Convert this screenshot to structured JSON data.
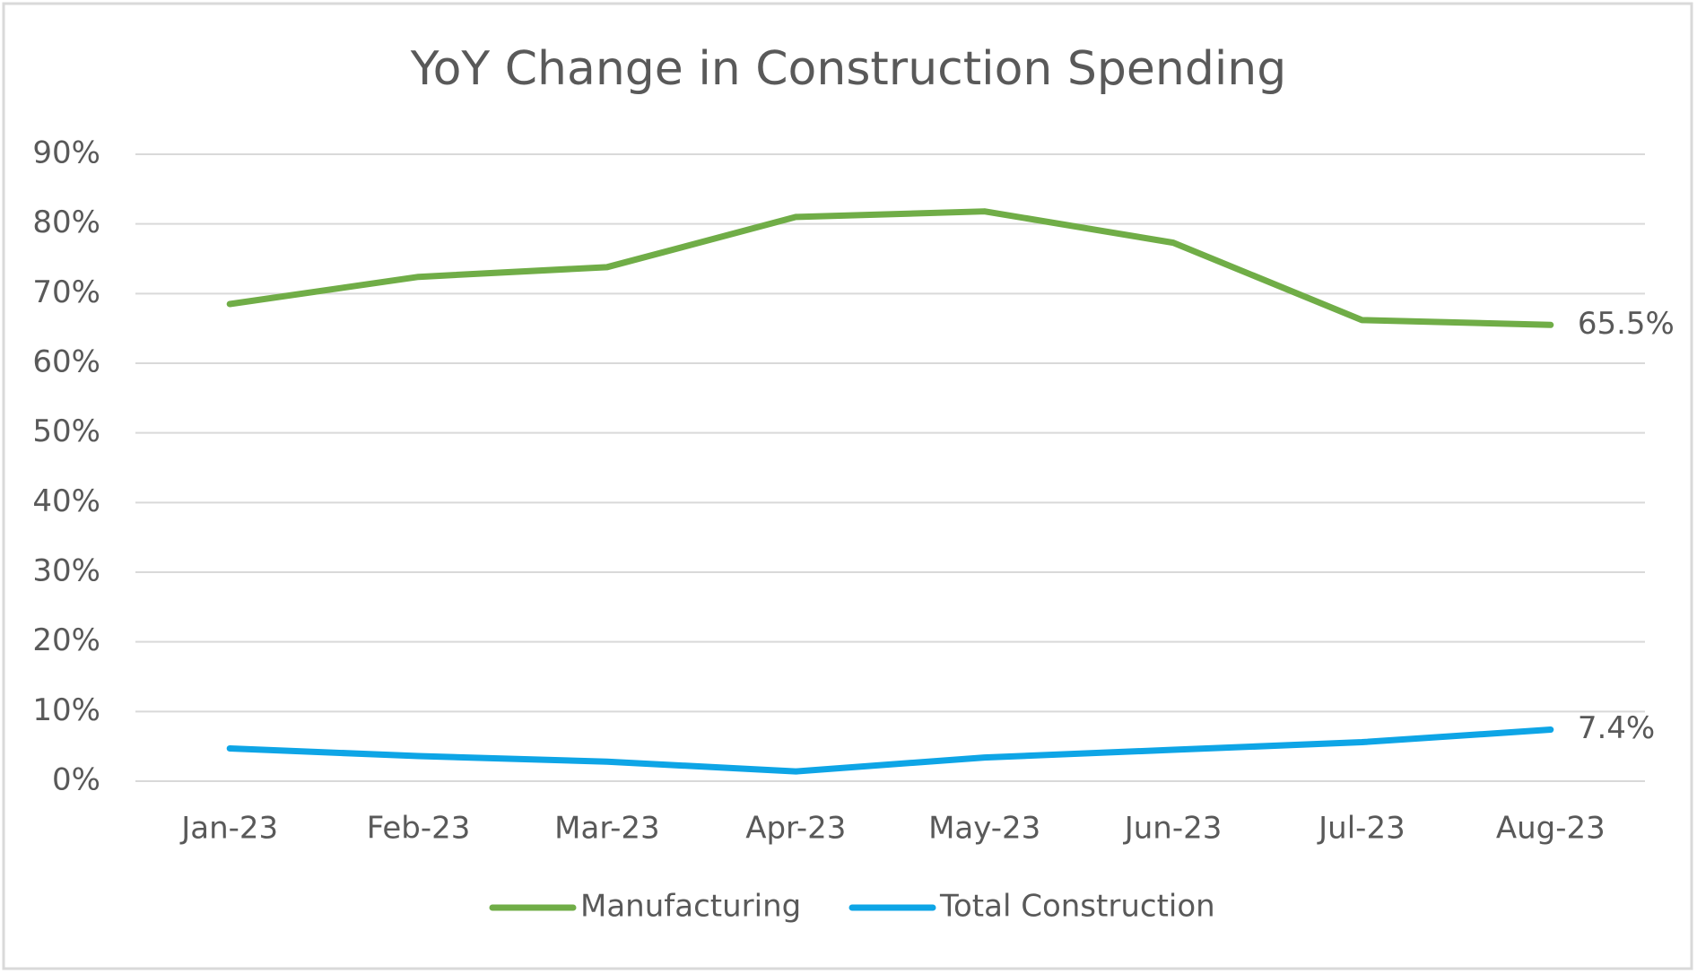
{
  "chart_data": {
    "type": "line",
    "title": "YoY Change in Construction Spending",
    "categories": [
      "Jan-23",
      "Feb-23",
      "Mar-23",
      "Apr-23",
      "May-23",
      "Jun-23",
      "Jul-23",
      "Aug-23"
    ],
    "series": [
      {
        "name": "Manufacturing",
        "color": "#70ad47",
        "values": [
          68.5,
          72.4,
          73.8,
          81.0,
          81.8,
          77.3,
          66.2,
          65.5
        ],
        "value_labels": [
          null,
          null,
          null,
          null,
          null,
          null,
          null,
          "65.5%"
        ]
      },
      {
        "name": "Total Construction",
        "color": "#0ea5e6",
        "values": [
          4.7,
          3.6,
          2.8,
          1.4,
          3.4,
          4.5,
          5.6,
          7.4
        ],
        "value_labels": [
          null,
          null,
          null,
          null,
          null,
          null,
          null,
          "7.4%"
        ]
      }
    ],
    "ylim": [
      0,
      90
    ],
    "yticks": [
      {
        "value": 0,
        "label": "0%"
      },
      {
        "value": 10,
        "label": "10%"
      },
      {
        "value": 20,
        "label": "20%"
      },
      {
        "value": 30,
        "label": "30%"
      },
      {
        "value": 40,
        "label": "40%"
      },
      {
        "value": 50,
        "label": "50%"
      },
      {
        "value": 60,
        "label": "60%"
      },
      {
        "value": 70,
        "label": "70%"
      },
      {
        "value": 80,
        "label": "80%"
      },
      {
        "value": 90,
        "label": "90%"
      }
    ],
    "grid": true,
    "legend": "bottom"
  }
}
